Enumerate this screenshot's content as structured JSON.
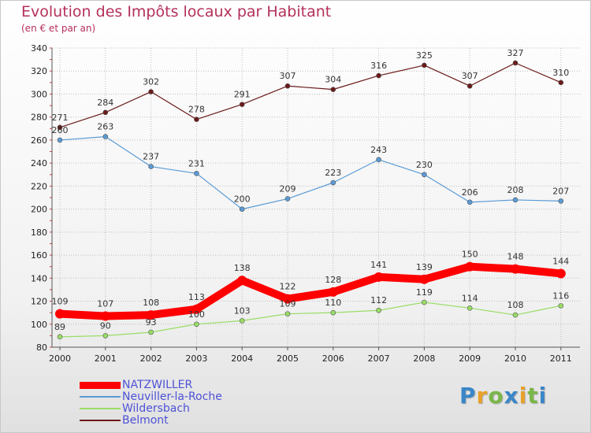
{
  "brand": {
    "logo_text": "Proxiti",
    "letters": [
      "P",
      "r",
      "o",
      "x",
      "i",
      "t",
      "i"
    ]
  },
  "chart_data": {
    "type": "line",
    "title": "Evolution des Impôts locaux par Habitant",
    "subtitle": "(en € et par an)",
    "xlabel": "",
    "ylabel": "",
    "x": [
      "2000",
      "2001",
      "2002",
      "2003",
      "2004",
      "2005",
      "2006",
      "2007",
      "2008",
      "2009",
      "2010",
      "2011"
    ],
    "ylim": [
      80,
      340
    ],
    "yticks": [
      80,
      100,
      120,
      140,
      160,
      180,
      200,
      220,
      240,
      260,
      280,
      300,
      320,
      340
    ],
    "grid": true,
    "legend_position": "bottom-left",
    "series": [
      {
        "name": "NATZWILLER",
        "color": "#ff0000",
        "values": [
          109,
          107,
          108,
          113,
          138,
          122,
          128,
          141,
          139,
          150,
          148,
          144
        ]
      },
      {
        "name": "Neuviller-la-Roche",
        "color": "#5b9bd5",
        "values": [
          260,
          263,
          237,
          231,
          200,
          209,
          223,
          243,
          230,
          206,
          208,
          207
        ]
      },
      {
        "name": "Wildersbach",
        "color": "#99dd66",
        "values": [
          89,
          90,
          93,
          100,
          103,
          109,
          110,
          112,
          119,
          114,
          108,
          116
        ]
      },
      {
        "name": "Belmont",
        "color": "#6b1a1a",
        "values": [
          271,
          284,
          302,
          278,
          291,
          307,
          304,
          316,
          325,
          307,
          327,
          310
        ]
      }
    ]
  }
}
